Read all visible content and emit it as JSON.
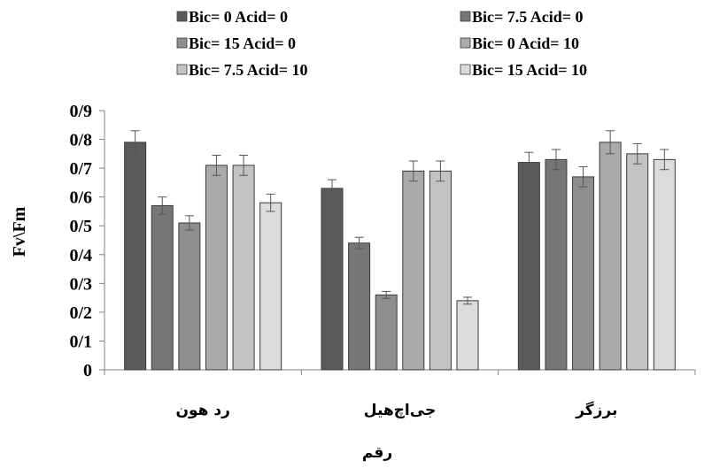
{
  "chart_data": {
    "type": "bar",
    "title": "",
    "xlabel": "رقم",
    "ylabel": "Fv\\Fm",
    "ylim": [
      0,
      0.9
    ],
    "ytick_labels": [
      "0",
      "0/1",
      "0/2",
      "0/3",
      "0/4",
      "0/5",
      "0/6",
      "0/7",
      "0/8",
      "0/9"
    ],
    "grid": false,
    "legend_position": "top",
    "categories": [
      "رد هون",
      "جی‌اچ‌هیل",
      "برزگر"
    ],
    "series": [
      {
        "name": "Bic= 0 Acid= 0",
        "color": "#5a5a5a",
        "values": [
          0.79,
          0.63,
          0.72
        ],
        "errors": [
          0.04,
          0.03,
          0.035
        ]
      },
      {
        "name": "Bic= 7.5 Acid= 0",
        "color": "#767676",
        "values": [
          0.57,
          0.44,
          0.73
        ],
        "errors": [
          0.03,
          0.02,
          0.035
        ]
      },
      {
        "name": "Bic= 15 Acid= 0",
        "color": "#8e8e8e",
        "values": [
          0.51,
          0.26,
          0.67
        ],
        "errors": [
          0.025,
          0.012,
          0.035
        ]
      },
      {
        "name": "Bic= 0 Acid= 10",
        "color": "#aaaaaa",
        "values": [
          0.71,
          0.69,
          0.79
        ],
        "errors": [
          0.035,
          0.035,
          0.04
        ]
      },
      {
        "name": "Bic= 7.5 Acid= 10",
        "color": "#c3c3c3",
        "values": [
          0.71,
          0.69,
          0.75
        ],
        "errors": [
          0.035,
          0.035,
          0.035
        ]
      },
      {
        "name": "Bic= 15 Acid= 10",
        "color": "#dcdcdc",
        "values": [
          0.58,
          0.24,
          0.73
        ],
        "errors": [
          0.03,
          0.012,
          0.035
        ]
      }
    ]
  }
}
